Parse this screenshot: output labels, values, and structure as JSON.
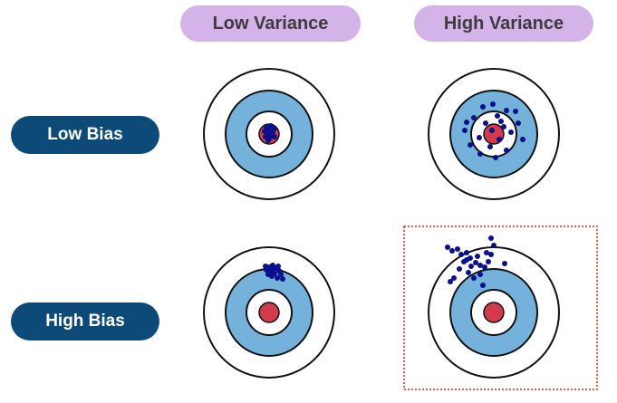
{
  "columns": {
    "low_variance": "Low Variance",
    "high_variance": "High Variance"
  },
  "rows": {
    "low_bias": "Low Bias",
    "high_bias": "High Bias"
  },
  "colors": {
    "column_pill": "#d4b3e8",
    "row_pill": "#0d4a78",
    "ring_blue": "#74b2dc",
    "bullseye": "#d23a4e",
    "dot": "#0a0f8c",
    "highlight_border": "#e0261f"
  },
  "panels": [
    {
      "name": "low-bias-low-variance-target",
      "highlighted": false
    },
    {
      "name": "low-bias-high-variance-target",
      "highlighted": false
    },
    {
      "name": "high-bias-low-variance-target",
      "highlighted": false
    },
    {
      "name": "high-bias-high-variance-target",
      "highlighted": true
    }
  ]
}
